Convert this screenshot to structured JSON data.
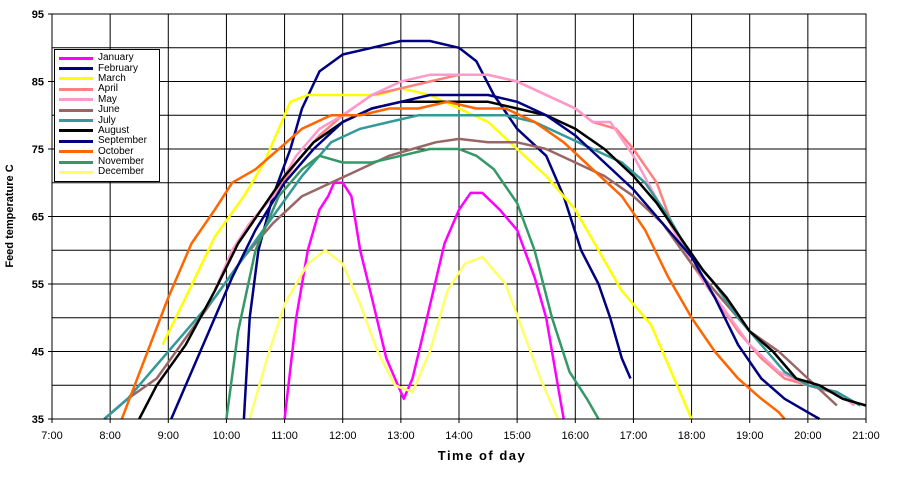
{
  "chart_data": {
    "type": "line",
    "ylabel": "Feed temperature C",
    "xlabel": "Time of day",
    "ylim": [
      35,
      95
    ],
    "yticks": [
      "35",
      "45",
      "55",
      "65",
      "75",
      "85",
      "95"
    ],
    "xlim": [
      7,
      21
    ],
    "xticks": [
      "7:00",
      "8:00",
      "9:00",
      "10:00",
      "11:00",
      "12:00",
      "13:00",
      "14:00",
      "15:00",
      "16:00",
      "17:00",
      "18:00",
      "19:00",
      "20:00",
      "21:00"
    ],
    "grid": true,
    "legend_position": "top-left",
    "series": [
      {
        "name": "January",
        "color": "#ff00ff",
        "points": [
          [
            11.0,
            35
          ],
          [
            11.2,
            50
          ],
          [
            11.4,
            60
          ],
          [
            11.6,
            66
          ],
          [
            11.75,
            68
          ],
          [
            11.85,
            70
          ],
          [
            12.0,
            70
          ],
          [
            12.15,
            68
          ],
          [
            12.3,
            60
          ],
          [
            12.5,
            53
          ],
          [
            12.75,
            44
          ],
          [
            12.95,
            40
          ],
          [
            13.05,
            38
          ],
          [
            13.2,
            41
          ],
          [
            13.45,
            50
          ],
          [
            13.75,
            61
          ],
          [
            14.0,
            66
          ],
          [
            14.2,
            68.5
          ],
          [
            14.4,
            68.5
          ],
          [
            14.7,
            66
          ],
          [
            15.0,
            63
          ],
          [
            15.3,
            56
          ],
          [
            15.5,
            50
          ],
          [
            15.7,
            40
          ],
          [
            15.8,
            35
          ]
        ]
      },
      {
        "name": "February",
        "color": "#000080",
        "points": [
          [
            10.3,
            35
          ],
          [
            10.4,
            50
          ],
          [
            10.55,
            60
          ],
          [
            10.8,
            68
          ],
          [
            11.1,
            75
          ],
          [
            11.3,
            81
          ],
          [
            11.6,
            86.5
          ],
          [
            12.0,
            89
          ],
          [
            12.5,
            90
          ],
          [
            13.0,
            91
          ],
          [
            13.5,
            91
          ],
          [
            14.0,
            90
          ],
          [
            14.3,
            88
          ],
          [
            14.6,
            83
          ],
          [
            15.0,
            78
          ],
          [
            15.5,
            74
          ],
          [
            15.8,
            68
          ],
          [
            16.1,
            60
          ],
          [
            16.4,
            55
          ],
          [
            16.6,
            50
          ],
          [
            16.8,
            44
          ],
          [
            16.95,
            41
          ]
        ]
      },
      {
        "name": "March",
        "color": "#ffff00",
        "points": [
          [
            8.9,
            46
          ],
          [
            9.3,
            53
          ],
          [
            9.8,
            62
          ],
          [
            10.3,
            68
          ],
          [
            10.65,
            73
          ],
          [
            10.9,
            78
          ],
          [
            11.1,
            82
          ],
          [
            11.4,
            83
          ],
          [
            11.8,
            83
          ],
          [
            12.2,
            83
          ],
          [
            12.6,
            83
          ],
          [
            13.0,
            84
          ],
          [
            13.5,
            83
          ],
          [
            14.0,
            81
          ],
          [
            14.5,
            79
          ],
          [
            15.0,
            75
          ],
          [
            15.5,
            71
          ],
          [
            16.0,
            66
          ],
          [
            16.4,
            60
          ],
          [
            16.8,
            54
          ],
          [
            17.3,
            49
          ],
          [
            17.6,
            43
          ],
          [
            17.9,
            37
          ],
          [
            18.0,
            35
          ]
        ]
      },
      {
        "name": "April",
        "color": "#ff8080",
        "points": [
          [
            9.8,
            54
          ],
          [
            10.1,
            60
          ],
          [
            10.4,
            64
          ],
          [
            10.8,
            68
          ],
          [
            11.2,
            73
          ],
          [
            11.6,
            77
          ],
          [
            12.0,
            80
          ],
          [
            12.5,
            83
          ],
          [
            13.0,
            84
          ],
          [
            13.5,
            85
          ],
          [
            14.0,
            86
          ],
          [
            14.5,
            86
          ],
          [
            15.0,
            85
          ],
          [
            15.5,
            83
          ],
          [
            16.0,
            81
          ],
          [
            16.3,
            79
          ],
          [
            16.7,
            78
          ],
          [
            17.0,
            75
          ],
          [
            17.4,
            70
          ],
          [
            17.7,
            63
          ],
          [
            18.0,
            58
          ],
          [
            18.4,
            53
          ],
          [
            18.8,
            48
          ],
          [
            19.2,
            44
          ],
          [
            19.6,
            41
          ],
          [
            20.0,
            40
          ],
          [
            20.4,
            39
          ],
          [
            20.7,
            38
          ]
        ]
      },
      {
        "name": "May",
        "color": "#ff99cc",
        "points": [
          [
            9.8,
            54
          ],
          [
            10.1,
            60
          ],
          [
            10.4,
            64
          ],
          [
            10.8,
            68
          ],
          [
            11.2,
            74
          ],
          [
            11.6,
            78
          ],
          [
            12.0,
            80
          ],
          [
            12.5,
            83
          ],
          [
            13.0,
            85
          ],
          [
            13.5,
            86
          ],
          [
            14.0,
            86
          ],
          [
            14.5,
            86
          ],
          [
            15.0,
            85
          ],
          [
            15.5,
            83
          ],
          [
            16.0,
            81
          ],
          [
            16.3,
            79
          ],
          [
            16.6,
            79
          ],
          [
            17.0,
            74
          ],
          [
            17.5,
            66
          ],
          [
            18.0,
            58
          ],
          [
            18.5,
            52
          ],
          [
            19.0,
            46
          ],
          [
            19.5,
            42
          ],
          [
            20.0,
            40
          ],
          [
            20.5,
            39
          ],
          [
            20.8,
            37
          ]
        ]
      },
      {
        "name": "June",
        "color": "#996666",
        "points": [
          [
            7.9,
            35
          ],
          [
            8.3,
            38
          ],
          [
            8.8,
            41
          ],
          [
            9.3,
            47
          ],
          [
            9.8,
            53
          ],
          [
            10.3,
            59
          ],
          [
            10.8,
            64
          ],
          [
            11.3,
            68
          ],
          [
            11.8,
            70
          ],
          [
            12.3,
            72
          ],
          [
            12.8,
            74
          ],
          [
            13.2,
            75
          ],
          [
            13.6,
            76
          ],
          [
            14.0,
            76.5
          ],
          [
            14.5,
            76
          ],
          [
            15.0,
            76
          ],
          [
            15.5,
            75
          ],
          [
            16.0,
            73
          ],
          [
            16.5,
            71
          ],
          [
            17.0,
            68
          ],
          [
            17.5,
            64
          ],
          [
            18.0,
            58
          ],
          [
            18.5,
            53
          ],
          [
            19.0,
            48
          ],
          [
            19.5,
            45
          ],
          [
            20.0,
            41
          ],
          [
            20.5,
            37
          ]
        ]
      },
      {
        "name": "July",
        "color": "#339999",
        "points": [
          [
            7.9,
            35
          ],
          [
            8.3,
            38
          ],
          [
            8.8,
            43
          ],
          [
            9.3,
            48
          ],
          [
            9.8,
            53
          ],
          [
            10.3,
            59
          ],
          [
            10.8,
            65
          ],
          [
            11.3,
            71
          ],
          [
            11.8,
            76
          ],
          [
            12.3,
            78
          ],
          [
            12.8,
            79
          ],
          [
            13.3,
            80
          ],
          [
            13.8,
            80
          ],
          [
            14.3,
            80
          ],
          [
            14.8,
            80
          ],
          [
            15.3,
            79
          ],
          [
            15.8,
            77
          ],
          [
            16.3,
            75
          ],
          [
            16.8,
            73
          ],
          [
            17.2,
            70
          ],
          [
            17.6,
            65
          ],
          [
            18.0,
            59
          ],
          [
            18.4,
            55
          ],
          [
            18.8,
            50
          ],
          [
            19.2,
            46
          ],
          [
            19.6,
            42
          ],
          [
            20.0,
            40
          ],
          [
            20.5,
            39
          ],
          [
            20.9,
            37
          ]
        ]
      },
      {
        "name": "August",
        "color": "#000000",
        "points": [
          [
            8.5,
            35
          ],
          [
            8.8,
            40
          ],
          [
            9.3,
            46
          ],
          [
            9.8,
            54
          ],
          [
            10.2,
            61
          ],
          [
            10.6,
            66
          ],
          [
            11.0,
            71
          ],
          [
            11.5,
            76
          ],
          [
            12.0,
            79
          ],
          [
            12.5,
            81
          ],
          [
            13.0,
            82
          ],
          [
            13.5,
            82
          ],
          [
            14.0,
            82
          ],
          [
            14.5,
            82
          ],
          [
            15.0,
            81
          ],
          [
            15.5,
            80
          ],
          [
            16.0,
            78
          ],
          [
            16.5,
            75
          ],
          [
            17.0,
            71
          ],
          [
            17.4,
            67
          ],
          [
            17.8,
            62
          ],
          [
            18.2,
            57
          ],
          [
            18.6,
            53
          ],
          [
            19.0,
            48
          ],
          [
            19.4,
            45
          ],
          [
            19.8,
            41
          ],
          [
            20.2,
            40
          ],
          [
            20.6,
            38
          ],
          [
            21.0,
            37
          ]
        ]
      },
      {
        "name": "September",
        "color": "#000080",
        "points": [
          [
            9.05,
            35
          ],
          [
            9.3,
            40
          ],
          [
            9.7,
            48
          ],
          [
            10.1,
            56
          ],
          [
            10.5,
            63
          ],
          [
            11.0,
            70
          ],
          [
            11.5,
            75
          ],
          [
            12.0,
            79
          ],
          [
            12.5,
            81
          ],
          [
            13.0,
            82
          ],
          [
            13.5,
            83
          ],
          [
            14.0,
            83
          ],
          [
            14.5,
            83
          ],
          [
            15.0,
            82
          ],
          [
            15.5,
            80
          ],
          [
            16.0,
            77
          ],
          [
            16.5,
            73
          ],
          [
            17.0,
            69
          ],
          [
            17.5,
            64
          ],
          [
            18.0,
            59
          ],
          [
            18.4,
            53
          ],
          [
            18.8,
            46
          ],
          [
            19.2,
            41
          ],
          [
            19.6,
            38
          ],
          [
            20.0,
            36
          ],
          [
            20.2,
            35
          ]
        ]
      },
      {
        "name": "October",
        "color": "#ff6600",
        "points": [
          [
            8.2,
            35
          ],
          [
            8.6,
            44
          ],
          [
            9.0,
            53
          ],
          [
            9.4,
            61
          ],
          [
            9.8,
            66
          ],
          [
            10.1,
            70
          ],
          [
            10.5,
            72
          ],
          [
            10.9,
            75
          ],
          [
            11.3,
            78
          ],
          [
            11.8,
            80
          ],
          [
            12.3,
            80
          ],
          [
            12.8,
            81
          ],
          [
            13.3,
            81
          ],
          [
            13.8,
            82
          ],
          [
            14.3,
            81
          ],
          [
            14.8,
            81
          ],
          [
            15.3,
            79
          ],
          [
            15.8,
            76
          ],
          [
            16.3,
            72
          ],
          [
            16.8,
            68
          ],
          [
            17.2,
            63
          ],
          [
            17.6,
            56
          ],
          [
            18.0,
            50
          ],
          [
            18.4,
            45
          ],
          [
            18.8,
            41
          ],
          [
            19.2,
            38
          ],
          [
            19.5,
            36
          ],
          [
            19.6,
            35
          ]
        ]
      },
      {
        "name": "November",
        "color": "#339966",
        "points": [
          [
            10.0,
            35
          ],
          [
            10.2,
            48
          ],
          [
            10.5,
            60
          ],
          [
            10.9,
            68
          ],
          [
            11.3,
            72
          ],
          [
            11.6,
            74
          ],
          [
            12.0,
            73
          ],
          [
            12.5,
            73
          ],
          [
            13.0,
            74
          ],
          [
            13.5,
            75
          ],
          [
            14.0,
            75
          ],
          [
            14.3,
            74
          ],
          [
            14.6,
            72
          ],
          [
            15.0,
            67
          ],
          [
            15.3,
            60
          ],
          [
            15.6,
            50
          ],
          [
            15.9,
            42
          ],
          [
            16.2,
            38
          ],
          [
            16.4,
            35
          ]
        ]
      },
      {
        "name": "December",
        "color": "#ffff66",
        "points": [
          [
            10.4,
            35
          ],
          [
            10.7,
            44
          ],
          [
            11.0,
            52
          ],
          [
            11.4,
            58
          ],
          [
            11.7,
            60
          ],
          [
            12.0,
            58
          ],
          [
            12.3,
            52
          ],
          [
            12.6,
            45
          ],
          [
            12.9,
            40
          ],
          [
            13.2,
            39
          ],
          [
            13.5,
            45
          ],
          [
            13.8,
            54
          ],
          [
            14.1,
            58
          ],
          [
            14.4,
            59
          ],
          [
            14.8,
            55
          ],
          [
            15.1,
            48
          ],
          [
            15.4,
            41
          ],
          [
            15.7,
            35
          ]
        ]
      }
    ]
  }
}
